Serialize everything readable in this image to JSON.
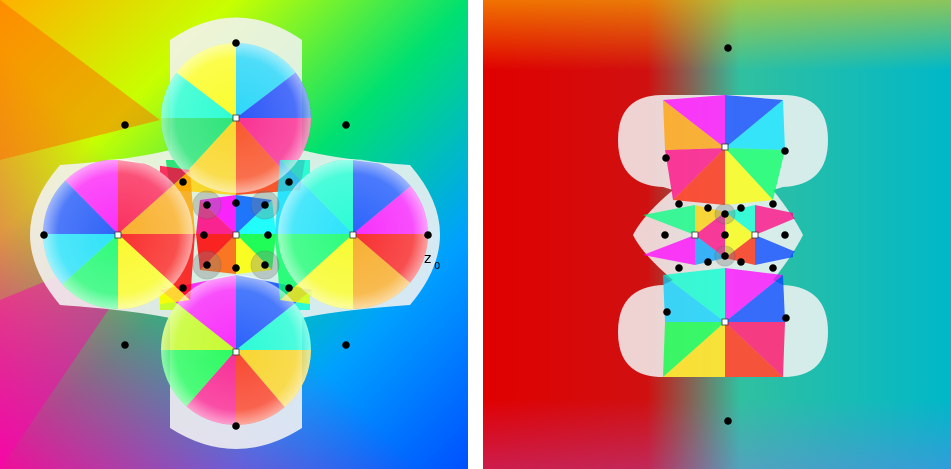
{
  "colors": {
    "background": "#ffffff",
    "zero_marker": "#000000",
    "pole_marker": "#ffffff",
    "pole_marker_stroke": "#333333"
  },
  "icons": {
    "zero": "black-dot-icon",
    "pole": "white-square-icon"
  },
  "left_panel": {
    "label_z": "z",
    "label_subscript": "0"
  }
}
